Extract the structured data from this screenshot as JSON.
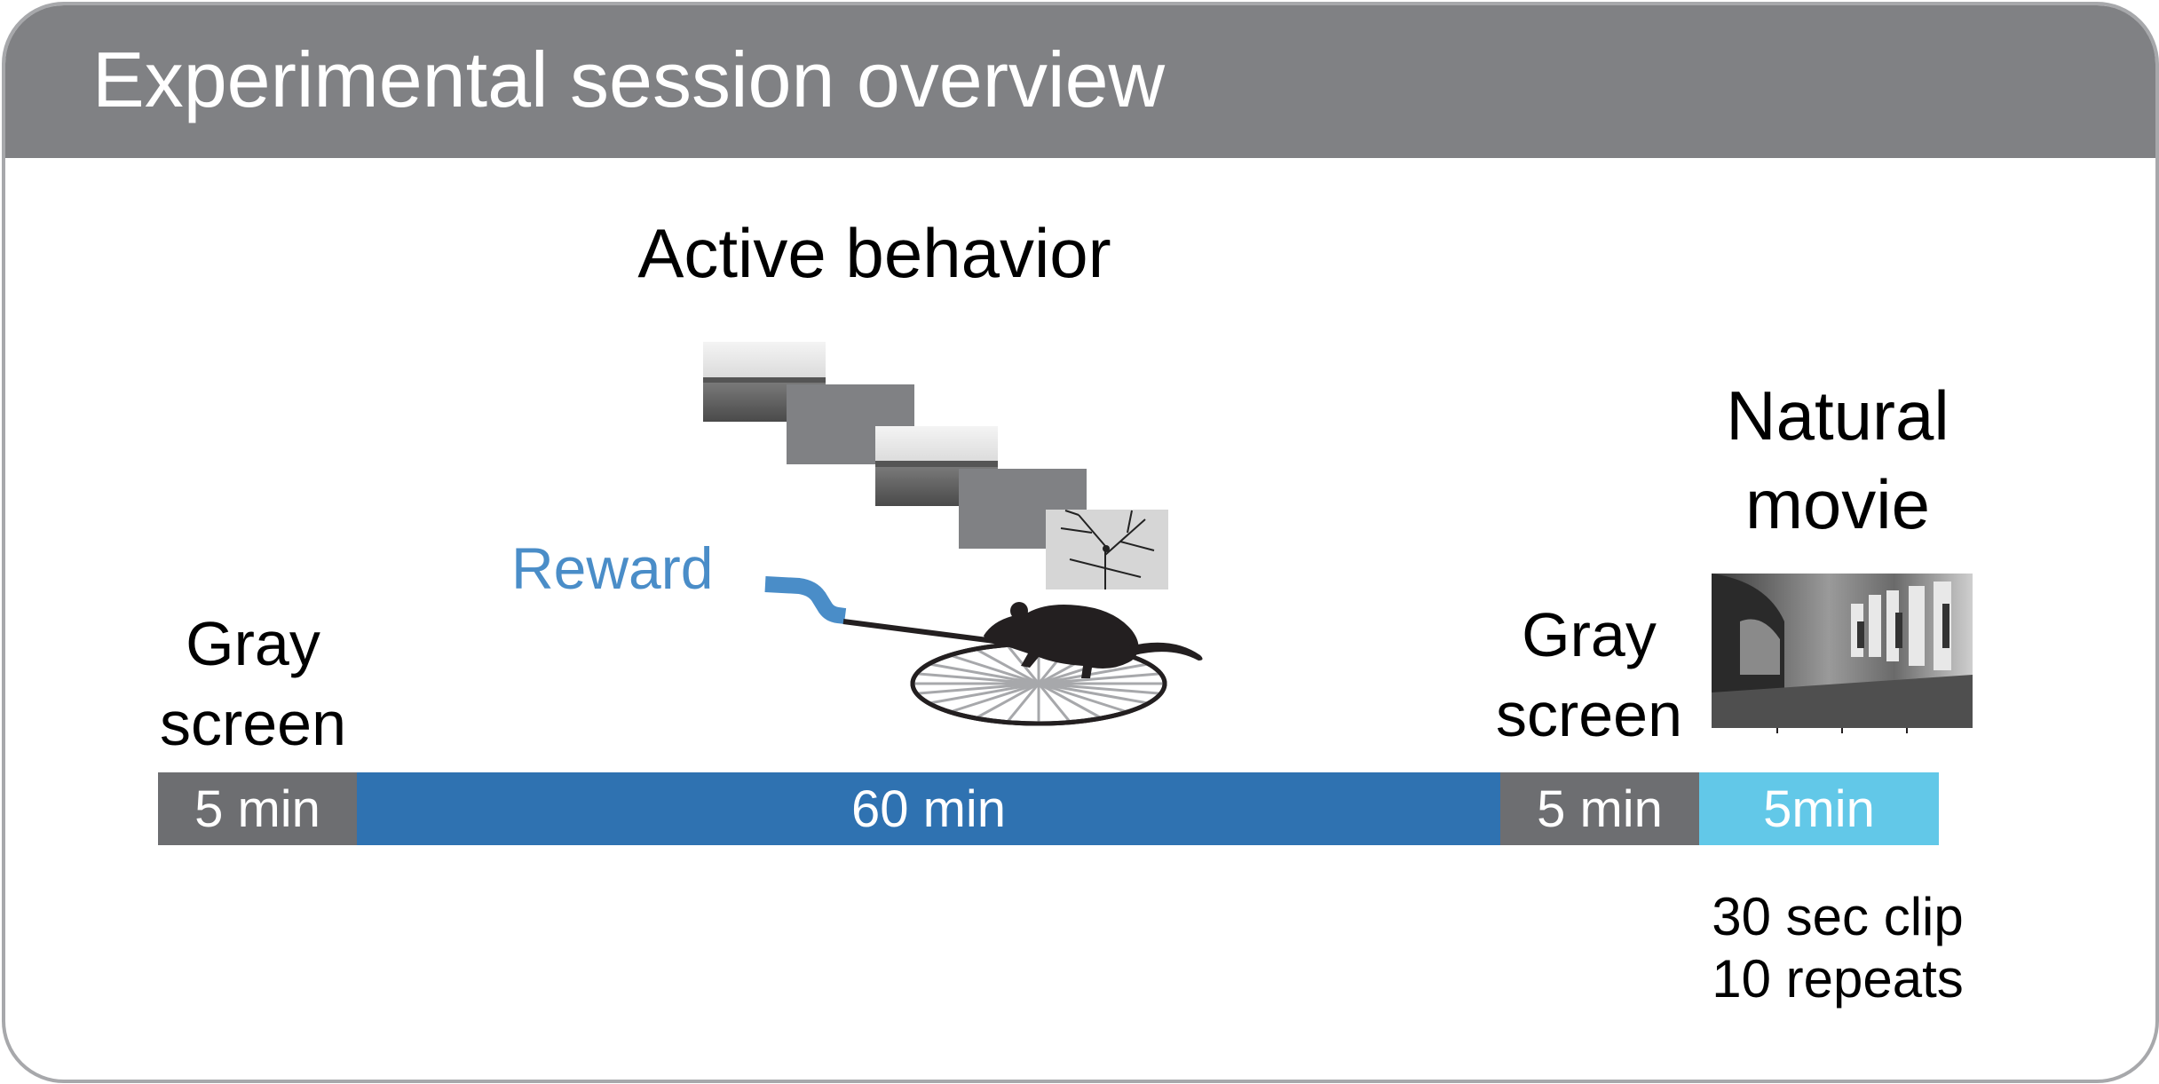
{
  "header": {
    "title": "Experimental session overview"
  },
  "labels": {
    "active_behavior": "Active behavior",
    "natural_movie": "Natural movie",
    "gray_screen_1": "Gray screen",
    "gray_screen_2": "Gray screen",
    "reward": "Reward",
    "clip_info": "30 sec clip 10 repeats"
  },
  "timeline": {
    "segments": [
      {
        "label": "5 min",
        "minutes": 5,
        "color": "#6d6e71"
      },
      {
        "label": "60 min",
        "minutes": 60,
        "color": "#2f72b1"
      },
      {
        "label": "5 min",
        "minutes": 5,
        "color": "#6d6e71"
      },
      {
        "label": "5min",
        "minutes": 5,
        "color": "#62c8e8"
      }
    ]
  },
  "colors": {
    "header": "#808184",
    "border": "#a7a8ab",
    "reward_text": "#4a8dc8",
    "stimulus_gray": "#808184"
  },
  "icons": [
    "landscape-photo-icon",
    "tree-branches-photo-icon",
    "mouse-icon",
    "running-wheel-icon",
    "reward-spout-icon",
    "street-movie-frame-icon"
  ]
}
